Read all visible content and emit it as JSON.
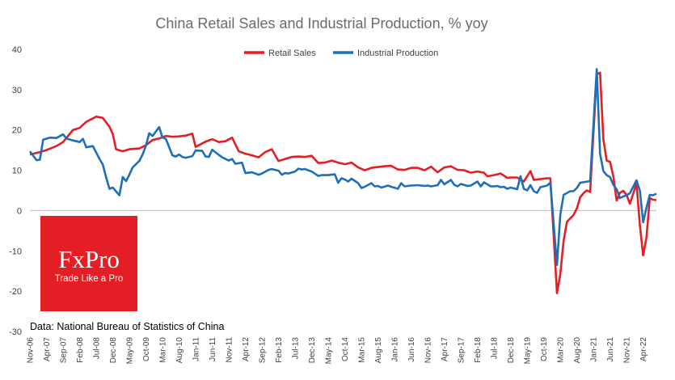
{
  "chart_data": {
    "type": "line",
    "title": "China Retail Sales and Industrial Production, % yoy",
    "xlabel": "",
    "ylabel": "",
    "ylim": [
      -30,
      40
    ],
    "yticks": [
      40,
      30,
      20,
      10,
      0,
      -10,
      -20,
      -30
    ],
    "grid": false,
    "legend_position": "top-center",
    "x_start": "Nov-06",
    "x_end": "Aug-22",
    "x_tick_labels": [
      "Nov-06",
      "Apr-07",
      "Sep-07",
      "Feb-08",
      "Jul-08",
      "Dec-08",
      "May-09",
      "Oct-09",
      "Mar-10",
      "Aug-10",
      "Jan-11",
      "Jun-11",
      "Nov-11",
      "Apr-12",
      "Sep-12",
      "Feb-13",
      "Jul-13",
      "Dec-13",
      "May-14",
      "Oct-14",
      "Mar-15",
      "Aug-15",
      "Jan-16",
      "Jun-16",
      "Nov-16",
      "Apr-17",
      "Sep-17",
      "Feb-18",
      "Jul-18",
      "Dec-18",
      "May-19",
      "Oct-19",
      "Mar-20",
      "Aug-20",
      "Jan-21",
      "Jun-21",
      "Nov-21",
      "Apr-22"
    ],
    "series": [
      {
        "name": "Retail Sales",
        "color": "#e31e24",
        "points": [
          [
            "Nov-06",
            13.9
          ],
          [
            "Feb-07",
            14.5
          ],
          [
            "Apr-07",
            15.0
          ],
          [
            "Jul-07",
            16.0
          ],
          [
            "Sep-07",
            17.0
          ],
          [
            "Dec-07",
            20.0
          ],
          [
            "Feb-08",
            20.5
          ],
          [
            "Apr-08",
            22.0
          ],
          [
            "Jul-08",
            23.3
          ],
          [
            "Sep-08",
            23.0
          ],
          [
            "Nov-08",
            20.8
          ],
          [
            "Dec-08",
            19.0
          ],
          [
            "Jan-09",
            15.2
          ],
          [
            "Mar-09",
            14.7
          ],
          [
            "May-09",
            15.2
          ],
          [
            "Aug-09",
            15.4
          ],
          [
            "Oct-09",
            16.2
          ],
          [
            "Dec-09",
            17.5
          ],
          [
            "Feb-10",
            17.9
          ],
          [
            "Apr-10",
            18.5
          ],
          [
            "Jun-10",
            18.3
          ],
          [
            "Aug-10",
            18.4
          ],
          [
            "Oct-10",
            18.6
          ],
          [
            "Dec-10",
            19.1
          ],
          [
            "Jan-11",
            15.8
          ],
          [
            "Apr-11",
            17.1
          ],
          [
            "Jun-11",
            17.7
          ],
          [
            "Aug-11",
            17.0
          ],
          [
            "Oct-11",
            17.2
          ],
          [
            "Dec-11",
            18.1
          ],
          [
            "Feb-12",
            14.7
          ],
          [
            "Apr-12",
            14.1
          ],
          [
            "Jun-12",
            13.7
          ],
          [
            "Aug-12",
            13.2
          ],
          [
            "Oct-12",
            14.5
          ],
          [
            "Dec-12",
            15.2
          ],
          [
            "Feb-13",
            12.3
          ],
          [
            "Apr-13",
            12.8
          ],
          [
            "Jun-13",
            13.3
          ],
          [
            "Aug-13",
            13.4
          ],
          [
            "Oct-13",
            13.3
          ],
          [
            "Dec-13",
            13.6
          ],
          [
            "Feb-14",
            11.8
          ],
          [
            "Apr-14",
            11.9
          ],
          [
            "Jun-14",
            12.4
          ],
          [
            "Aug-14",
            11.9
          ],
          [
            "Oct-14",
            11.5
          ],
          [
            "Dec-14",
            11.9
          ],
          [
            "Feb-15",
            10.7
          ],
          [
            "Apr-15",
            10.0
          ],
          [
            "Jun-15",
            10.6
          ],
          [
            "Aug-15",
            10.8
          ],
          [
            "Oct-15",
            11.0
          ],
          [
            "Dec-15",
            11.1
          ],
          [
            "Feb-16",
            10.2
          ],
          [
            "Apr-16",
            10.1
          ],
          [
            "Jun-16",
            10.6
          ],
          [
            "Aug-16",
            10.6
          ],
          [
            "Oct-16",
            10.0
          ],
          [
            "Dec-16",
            10.9
          ],
          [
            "Feb-17",
            9.5
          ],
          [
            "Apr-17",
            10.7
          ],
          [
            "Jun-17",
            11.0
          ],
          [
            "Aug-17",
            10.1
          ],
          [
            "Oct-17",
            10.0
          ],
          [
            "Dec-17",
            9.4
          ],
          [
            "Feb-18",
            9.7
          ],
          [
            "Apr-18",
            9.4
          ],
          [
            "May-18",
            8.5
          ],
          [
            "Jul-18",
            8.8
          ],
          [
            "Sep-18",
            9.2
          ],
          [
            "Nov-18",
            8.1
          ],
          [
            "Dec-18",
            8.2
          ],
          [
            "Feb-19",
            8.2
          ],
          [
            "Apr-19",
            7.2
          ],
          [
            "Jun-19",
            9.8
          ],
          [
            "Jul-19",
            7.6
          ],
          [
            "Sep-19",
            7.8
          ],
          [
            "Nov-19",
            8.0
          ],
          [
            "Dec-19",
            8.0
          ],
          [
            "Feb-20",
            -20.5
          ],
          [
            "Mar-20",
            -15.8
          ],
          [
            "Apr-20",
            -7.5
          ],
          [
            "May-20",
            -2.8
          ],
          [
            "Jul-20",
            -1.1
          ],
          [
            "Aug-20",
            0.5
          ],
          [
            "Sep-20",
            3.3
          ],
          [
            "Oct-20",
            4.3
          ],
          [
            "Nov-20",
            5.0
          ],
          [
            "Dec-20",
            4.6
          ],
          [
            "Feb-21",
            33.8
          ],
          [
            "Mar-21",
            34.2
          ],
          [
            "Apr-21",
            17.7
          ],
          [
            "May-21",
            12.4
          ],
          [
            "Jun-21",
            12.1
          ],
          [
            "Jul-21",
            8.5
          ],
          [
            "Aug-21",
            2.5
          ],
          [
            "Sep-21",
            4.4
          ],
          [
            "Oct-21",
            4.9
          ],
          [
            "Nov-21",
            3.9
          ],
          [
            "Dec-21",
            1.7
          ],
          [
            "Feb-22",
            6.7
          ],
          [
            "Mar-22",
            -3.5
          ],
          [
            "Apr-22",
            -11.1
          ],
          [
            "May-22",
            -6.7
          ],
          [
            "Jun-22",
            3.1
          ],
          [
            "Jul-22",
            2.7
          ],
          [
            "Aug-22",
            2.6
          ]
        ]
      },
      {
        "name": "Industrial Production",
        "color": "#1f6fb8",
        "points": [
          [
            "Nov-06",
            14.7
          ],
          [
            "Jan-07",
            12.5
          ],
          [
            "Feb-07",
            12.6
          ],
          [
            "Mar-07",
            17.6
          ],
          [
            "May-07",
            18.1
          ],
          [
            "Jul-07",
            18.0
          ],
          [
            "Sep-07",
            18.9
          ],
          [
            "Oct-07",
            17.9
          ],
          [
            "Dec-07",
            17.4
          ],
          [
            "Feb-08",
            17.0
          ],
          [
            "Mar-08",
            17.8
          ],
          [
            "Apr-08",
            15.7
          ],
          [
            "Jun-08",
            16.0
          ],
          [
            "Aug-08",
            12.8
          ],
          [
            "Sep-08",
            11.4
          ],
          [
            "Oct-08",
            8.2
          ],
          [
            "Nov-08",
            5.4
          ],
          [
            "Dec-08",
            5.7
          ],
          [
            "Feb-09",
            3.8
          ],
          [
            "Mar-09",
            8.3
          ],
          [
            "Apr-09",
            7.3
          ],
          [
            "May-09",
            8.9
          ],
          [
            "Jun-09",
            10.7
          ],
          [
            "Aug-09",
            12.3
          ],
          [
            "Sep-09",
            13.9
          ],
          [
            "Oct-09",
            16.1
          ],
          [
            "Nov-09",
            19.2
          ],
          [
            "Dec-09",
            18.5
          ],
          [
            "Feb-10",
            20.7
          ],
          [
            "Mar-10",
            18.1
          ],
          [
            "Apr-10",
            17.8
          ],
          [
            "Jun-10",
            13.7
          ],
          [
            "Jul-10",
            13.4
          ],
          [
            "Aug-10",
            13.9
          ],
          [
            "Sep-10",
            13.3
          ],
          [
            "Oct-10",
            13.1
          ],
          [
            "Dec-10",
            13.5
          ],
          [
            "Jan-11",
            14.9
          ],
          [
            "Mar-11",
            14.8
          ],
          [
            "Apr-11",
            13.4
          ],
          [
            "May-11",
            13.3
          ],
          [
            "Jun-11",
            15.1
          ],
          [
            "Aug-11",
            13.8
          ],
          [
            "Sep-11",
            13.2
          ],
          [
            "Nov-11",
            12.4
          ],
          [
            "Dec-11",
            12.8
          ],
          [
            "Jan-12",
            11.6
          ],
          [
            "Mar-12",
            11.9
          ],
          [
            "Apr-12",
            9.3
          ],
          [
            "Jun-12",
            9.5
          ],
          [
            "Jul-12",
            9.2
          ],
          [
            "Aug-12",
            8.9
          ],
          [
            "Sep-12",
            9.2
          ],
          [
            "Nov-12",
            10.1
          ],
          [
            "Dec-12",
            10.3
          ],
          [
            "Feb-13",
            9.9
          ],
          [
            "Mar-13",
            8.9
          ],
          [
            "Apr-13",
            9.3
          ],
          [
            "May-13",
            9.2
          ],
          [
            "Jul-13",
            9.7
          ],
          [
            "Aug-13",
            10.4
          ],
          [
            "Sep-13",
            10.2
          ],
          [
            "Oct-13",
            10.3
          ],
          [
            "Dec-13",
            9.7
          ],
          [
            "Feb-14",
            8.6
          ],
          [
            "Mar-14",
            8.8
          ],
          [
            "May-14",
            8.8
          ],
          [
            "Jul-14",
            9.0
          ],
          [
            "Aug-14",
            6.9
          ],
          [
            "Sep-14",
            8.0
          ],
          [
            "Oct-14",
            7.7
          ],
          [
            "Nov-14",
            7.2
          ],
          [
            "Dec-14",
            7.9
          ],
          [
            "Feb-15",
            6.8
          ],
          [
            "Mar-15",
            5.6
          ],
          [
            "Apr-15",
            5.9
          ],
          [
            "Jun-15",
            6.8
          ],
          [
            "Jul-15",
            6.0
          ],
          [
            "Aug-15",
            6.1
          ],
          [
            "Sep-15",
            5.7
          ],
          [
            "Nov-15",
            6.2
          ],
          [
            "Dec-15",
            5.9
          ],
          [
            "Feb-16",
            5.4
          ],
          [
            "Mar-16",
            6.8
          ],
          [
            "Apr-16",
            6.0
          ],
          [
            "Jun-16",
            6.2
          ],
          [
            "Aug-16",
            6.3
          ],
          [
            "Oct-16",
            6.1
          ],
          [
            "Nov-16",
            6.2
          ],
          [
            "Dec-16",
            6.0
          ],
          [
            "Feb-17",
            6.3
          ],
          [
            "Mar-17",
            7.6
          ],
          [
            "Apr-17",
            6.5
          ],
          [
            "Jun-17",
            7.6
          ],
          [
            "Jul-17",
            6.4
          ],
          [
            "Aug-17",
            6.0
          ],
          [
            "Sep-17",
            6.6
          ],
          [
            "Nov-17",
            6.1
          ],
          [
            "Dec-17",
            6.2
          ],
          [
            "Feb-18",
            7.2
          ],
          [
            "Mar-18",
            6.0
          ],
          [
            "Apr-18",
            7.0
          ],
          [
            "Jun-18",
            6.0
          ],
          [
            "Jul-18",
            6.0
          ],
          [
            "Aug-18",
            6.1
          ],
          [
            "Sep-18",
            5.8
          ],
          [
            "Oct-18",
            5.9
          ],
          [
            "Nov-18",
            5.4
          ],
          [
            "Dec-18",
            5.7
          ],
          [
            "Feb-19",
            5.3
          ],
          [
            "Mar-19",
            8.5
          ],
          [
            "Apr-19",
            5.4
          ],
          [
            "May-19",
            5.0
          ],
          [
            "Jun-19",
            6.3
          ],
          [
            "Jul-19",
            4.8
          ],
          [
            "Aug-19",
            4.4
          ],
          [
            "Sep-19",
            5.8
          ],
          [
            "Nov-19",
            6.2
          ],
          [
            "Dec-19",
            6.9
          ],
          [
            "Feb-20",
            -13.5
          ],
          [
            "Mar-20",
            -1.1
          ],
          [
            "Apr-20",
            3.9
          ],
          [
            "Jun-20",
            4.8
          ],
          [
            "Jul-20",
            4.8
          ],
          [
            "Aug-20",
            5.6
          ],
          [
            "Sep-20",
            6.9
          ],
          [
            "Dec-20",
            7.3
          ],
          [
            "Feb-21",
            35.1
          ],
          [
            "Mar-21",
            14.1
          ],
          [
            "Apr-21",
            9.8
          ],
          [
            "May-21",
            8.8
          ],
          [
            "Jun-21",
            8.3
          ],
          [
            "Jul-21",
            6.4
          ],
          [
            "Aug-21",
            5.3
          ],
          [
            "Sep-21",
            3.1
          ],
          [
            "Oct-21",
            3.5
          ],
          [
            "Nov-21",
            3.8
          ],
          [
            "Dec-21",
            4.3
          ],
          [
            "Feb-22",
            7.5
          ],
          [
            "Mar-22",
            5.0
          ],
          [
            "Apr-22",
            -2.9
          ],
          [
            "May-22",
            0.7
          ],
          [
            "Jun-22",
            3.9
          ],
          [
            "Jul-22",
            3.8
          ],
          [
            "Aug-22",
            4.2
          ]
        ]
      }
    ]
  },
  "source_note": "Data: National Bureau of Statistics of China",
  "logo": {
    "brand": "FxPro",
    "tagline": "Trade Like a Pro",
    "color": "#e31e24"
  }
}
